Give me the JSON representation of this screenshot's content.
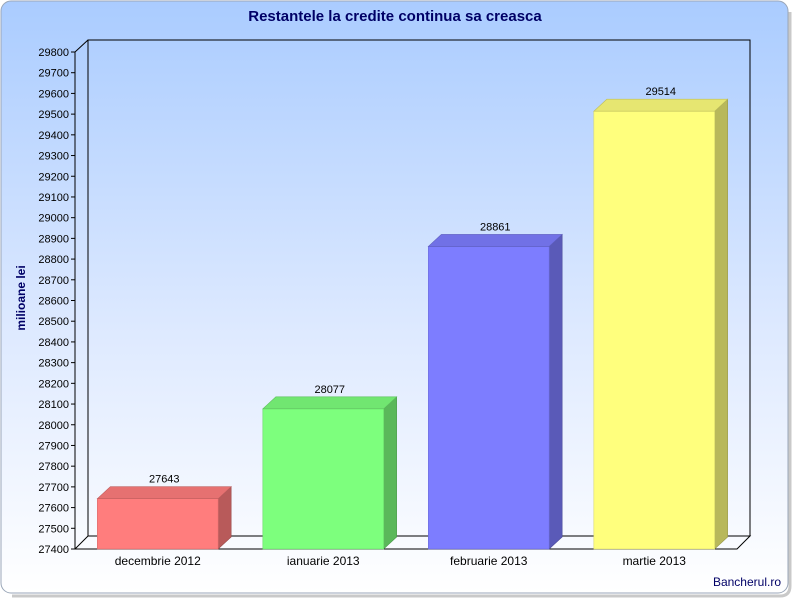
{
  "chart_data": {
    "type": "bar",
    "title": "Restantele la credite continua sa creasca",
    "xlabel": "",
    "ylabel": "milioane lei",
    "categories": [
      "decembrie 2012",
      "ianuarie 2013",
      "februarie 2013",
      "martie 2013"
    ],
    "values": [
      27643,
      28077,
      28861,
      29514
    ],
    "value_labels": [
      "27643",
      "28077",
      "28861",
      "29514"
    ],
    "bar_colors": [
      "#ff7d7d",
      "#7dff7d",
      "#7d7dff",
      "#ffff7d"
    ],
    "ylim": [
      27400,
      29800
    ],
    "yticks": [
      27400,
      27500,
      27600,
      27700,
      27800,
      27900,
      28000,
      28100,
      28200,
      28300,
      28400,
      28500,
      28600,
      28700,
      28800,
      28900,
      29000,
      29100,
      29200,
      29300,
      29400,
      29500,
      29600,
      29700,
      29800
    ],
    "grid": false,
    "legend": "none"
  },
  "credit": "Bancherul.ro",
  "colors": {
    "title": "#000066",
    "ylabel": "#000066",
    "background_top": "#aaccff",
    "background_bottom": "#ffffff"
  }
}
